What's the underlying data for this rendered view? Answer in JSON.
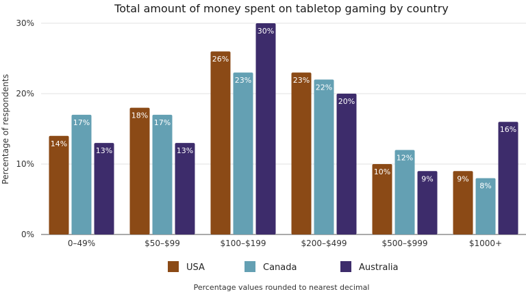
{
  "chart_data": {
    "type": "bar",
    "title": "Total amount of money spent on tabletop gaming by country",
    "xlabel": "",
    "ylabel": "Percentage of respondents",
    "ylim": [
      0,
      30
    ],
    "yticks": [
      "0%",
      "10%",
      "20%",
      "30%"
    ],
    "ytick_values": [
      0,
      10,
      20,
      30
    ],
    "grid": true,
    "legend_position": "bottom",
    "categories": [
      "0–49%",
      "$50–$99",
      "$100–$199",
      "$200–$499",
      "$500–$999",
      "$1000+"
    ],
    "series": [
      {
        "name": "USA",
        "color": "#8B4A16",
        "values": [
          14,
          18,
          26,
          23,
          10,
          9
        ],
        "labels": [
          "14%",
          "18%",
          "26%",
          "23%",
          "10%",
          "9%"
        ]
      },
      {
        "name": "Canada",
        "color": "#64A0B3",
        "values": [
          17,
          17,
          23,
          22,
          12,
          8
        ],
        "labels": [
          "17%",
          "17%",
          "23%",
          "22%",
          "12%",
          "8%"
        ]
      },
      {
        "name": "Australia",
        "color": "#3D2C6B",
        "values": [
          13,
          13,
          30,
          20,
          9,
          16
        ],
        "labels": [
          "13%",
          "13%",
          "30%",
          "20%",
          "9%",
          "16%"
        ]
      }
    ],
    "note": "Percentage values rounded to nearest decimal"
  }
}
